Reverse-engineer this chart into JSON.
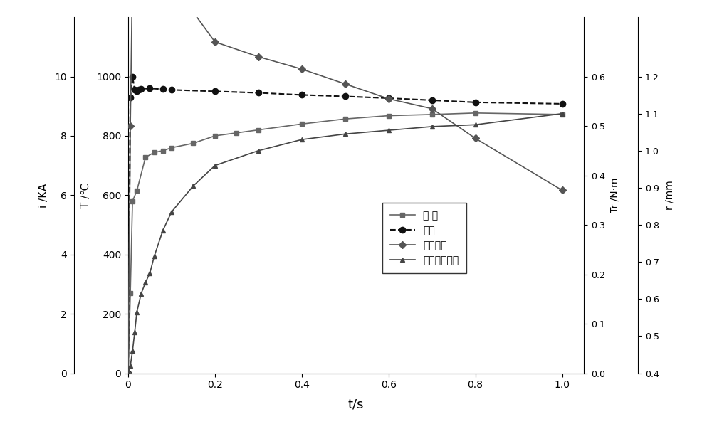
{
  "xlabel": "t/s",
  "ylabel_left_i": "i /KA",
  "ylabel_left_T": "T /℃",
  "ylabel_right_Tr": "Tr /N·m",
  "ylabel_right_r": "r /mm",
  "xlim": [
    0,
    1.05
  ],
  "ylim_i": [
    0,
    12
  ],
  "ylim_T": [
    0,
    1200
  ],
  "ylim_Tr": [
    0.0,
    0.72
  ],
  "ylim_r": [
    0.4,
    1.36
  ],
  "xticks": [
    0,
    0.2,
    0.4,
    0.6,
    0.8,
    1.0
  ],
  "yticks_i": [
    0,
    2,
    4,
    6,
    8,
    10
  ],
  "yticks_T": [
    0,
    200,
    400,
    600,
    800,
    1000
  ],
  "yticks_Tr": [
    0.0,
    0.1,
    0.2,
    0.3,
    0.4,
    0.5,
    0.6
  ],
  "yticks_r": [
    0.4,
    0.5,
    0.6,
    0.7,
    0.8,
    0.9,
    1.0,
    1.1,
    1.2
  ],
  "temp_t": [
    0,
    0.005,
    0.01,
    0.02,
    0.04,
    0.06,
    0.08,
    0.1,
    0.15,
    0.2,
    0.25,
    0.3,
    0.4,
    0.5,
    0.6,
    0.7,
    0.8,
    1.0
  ],
  "temp_T": [
    0,
    270,
    580,
    615,
    728,
    744,
    750,
    760,
    775,
    800,
    810,
    820,
    840,
    857,
    868,
    872,
    877,
    872
  ],
  "curr_t": [
    0,
    0.005,
    0.01,
    0.015,
    0.02,
    0.025,
    0.03,
    0.05,
    0.08,
    0.1,
    0.2,
    0.3,
    0.4,
    0.5,
    0.6,
    0.7,
    0.8,
    1.0
  ],
  "curr_i": [
    0,
    9.3,
    10.0,
    9.55,
    9.5,
    9.55,
    9.58,
    9.6,
    9.57,
    9.55,
    9.5,
    9.45,
    9.38,
    9.33,
    9.27,
    9.2,
    9.13,
    9.08
  ],
  "force_t": [
    0,
    0.005,
    0.01,
    0.015,
    0.02,
    0.03,
    0.04,
    0.06,
    0.08,
    0.1,
    0.15,
    0.2,
    0.3,
    0.4,
    0.5,
    0.6,
    0.7,
    0.8,
    1.0
  ],
  "force_Tr": [
    0,
    0.5,
    0.82,
    0.81,
    0.81,
    0.8,
    0.795,
    0.775,
    0.765,
    0.755,
    0.73,
    0.67,
    0.64,
    0.615,
    0.585,
    0.555,
    0.535,
    0.475,
    0.37
  ],
  "rad_t": [
    0,
    0.005,
    0.01,
    0.015,
    0.02,
    0.03,
    0.04,
    0.05,
    0.06,
    0.08,
    0.1,
    0.15,
    0.2,
    0.3,
    0.4,
    0.5,
    0.6,
    0.7,
    0.8,
    1.0
  ],
  "rad_r": [
    0.4,
    0.42,
    0.46,
    0.51,
    0.565,
    0.615,
    0.645,
    0.67,
    0.715,
    0.785,
    0.835,
    0.905,
    0.96,
    1.0,
    1.03,
    1.045,
    1.055,
    1.065,
    1.07,
    1.1
  ],
  "color_temp": "#666666",
  "color_current": "#111111",
  "color_force": "#555555",
  "color_radius": "#444444",
  "background_color": "#ffffff",
  "legend_labels": [
    "温 度",
    "电流",
    "电动斥力",
    "导电斑点半径"
  ],
  "figsize": [
    10.0,
    6.03
  ],
  "dpi": 100
}
